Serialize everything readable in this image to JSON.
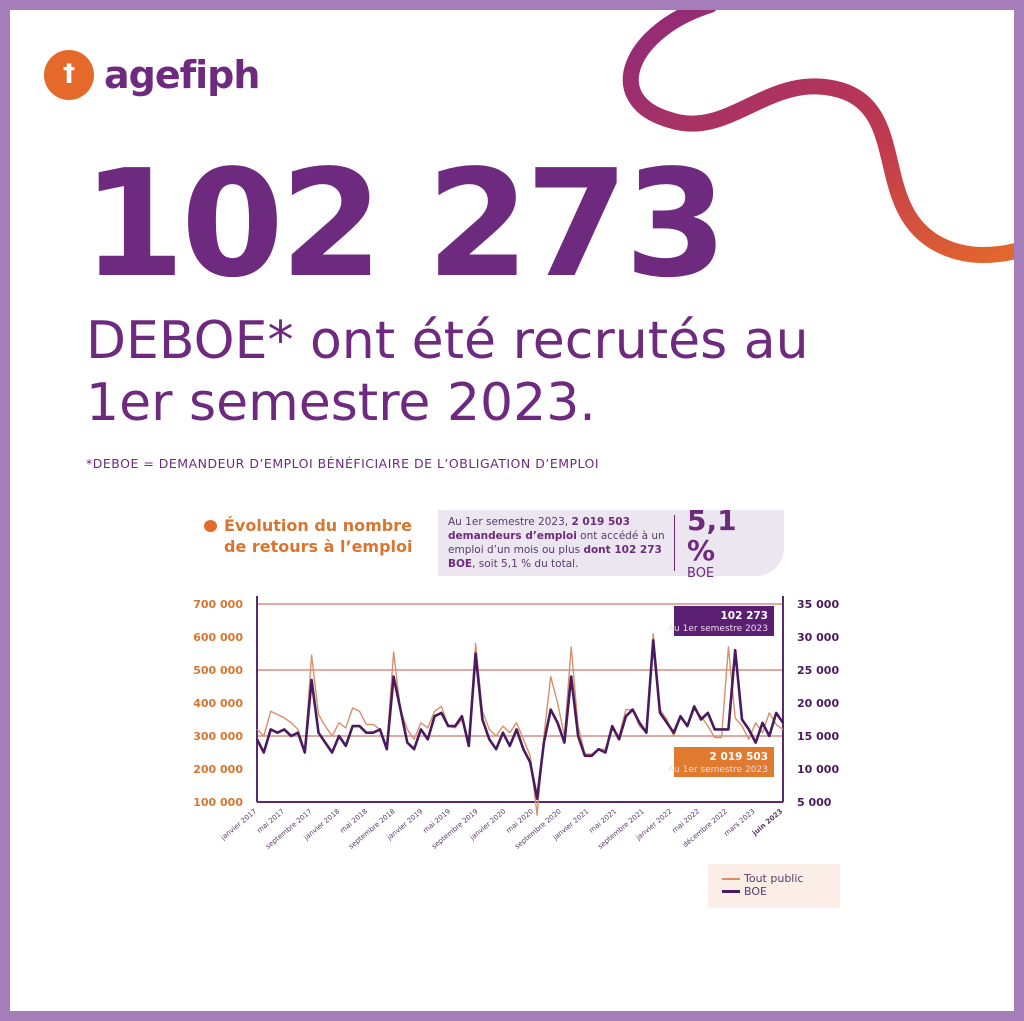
{
  "brand": {
    "logo_text": "agefiph",
    "color": "#6e2a7e",
    "accent": "#e4692a"
  },
  "hero": {
    "number": "102 273",
    "headline": "DEBOE* ont été recrutés au 1er semestre 2023.",
    "footnote": "*DEBOE = DEMANDEUR D’EMPLOI BÉNÉFICIAIRE DE L’OBLIGATION D’EMPLOI"
  },
  "info": {
    "text_a": "Au 1er semestre 2023, ",
    "text_b": "2 019 503 demandeurs d’emploi",
    "text_c": " ont accédé à un emploi d’un mois ou plus ",
    "text_d": "dont 102 273 BOE",
    "text_e": ", soit 5,1 % du total.",
    "pct": "5,1 %",
    "pct_label": "BOE"
  },
  "chart_data": {
    "type": "line",
    "title": "Évolution du nombre de retours à l’emploi",
    "left_axis": {
      "ticks": [
        "700 000",
        "600 000",
        "500 000",
        "400 000",
        "300 000",
        "200 000",
        "100 000"
      ],
      "range": [
        100000,
        700000
      ]
    },
    "right_axis": {
      "ticks": [
        "35 000",
        "30 000",
        "25 000",
        "20 000",
        "15 000",
        "10 000",
        "5 000"
      ],
      "range": [
        5000,
        35000
      ]
    },
    "x_labels": [
      "janvier 2017",
      "mai 2017",
      "septembre 2017",
      "janvier 2018",
      "mai 2018",
      "septembre 2018",
      "janvier 2019",
      "mai 2019",
      "septembre 2019",
      "janvier 2020",
      "mai 2020",
      "septembre 2020",
      "janvier 2021",
      "mai 2021",
      "septembre 2021",
      "janvier 2022",
      "mai 2022",
      "décembre 2022",
      "mars 2023",
      "juin 2023"
    ],
    "series": [
      {
        "name": "Tout public",
        "axis": "left",
        "color": "#d9906a",
        "values": [
          320,
          300,
          375,
          365,
          355,
          340,
          320,
          255,
          545,
          365,
          330,
          300,
          340,
          325,
          385,
          375,
          335,
          335,
          320,
          265,
          555,
          380,
          320,
          290,
          340,
          325,
          375,
          390,
          330,
          325,
          350,
          275,
          580,
          375,
          320,
          300,
          330,
          310,
          340,
          290,
          240,
          60,
          300,
          480,
          400,
          300,
          570,
          330,
          245,
          245,
          260,
          260,
          320,
          300,
          380,
          380,
          330,
          310,
          610,
          380,
          350,
          300,
          355,
          330,
          380,
          360,
          330,
          295,
          295,
          570,
          355,
          330,
          290,
          340,
          310,
          370,
          335,
          320
        ],
        "annotation": {
          "value": "2 019 503",
          "label": "Au 1er semestre 2023"
        }
      },
      {
        "name": "BOE",
        "axis": "right",
        "color": "#4a1a5e",
        "values": [
          14.5,
          12.5,
          16,
          15.5,
          16,
          15,
          15.5,
          12.5,
          23.5,
          15.5,
          14,
          12.5,
          15,
          13.5,
          16.5,
          16.5,
          15.5,
          15.5,
          16,
          13,
          24,
          19,
          14,
          13,
          16,
          14.5,
          18,
          18.5,
          16.5,
          16.5,
          18,
          13.5,
          27.5,
          17.5,
          14.5,
          13,
          15.5,
          13.5,
          16,
          13,
          11,
          5.5,
          14,
          19,
          17,
          14,
          24,
          15,
          12,
          12,
          13,
          12.5,
          16.5,
          14.5,
          18,
          19,
          17,
          15.5,
          29.5,
          18.5,
          17,
          15.5,
          18,
          16.5,
          19.5,
          17.5,
          18.5,
          16,
          16,
          16,
          28,
          17.5,
          16,
          14,
          17,
          15,
          18.5,
          17
        ],
        "annotation": {
          "value": "102 273",
          "label": "Au 1er semestre 2023"
        }
      }
    ],
    "legend": "bottom-right"
  }
}
